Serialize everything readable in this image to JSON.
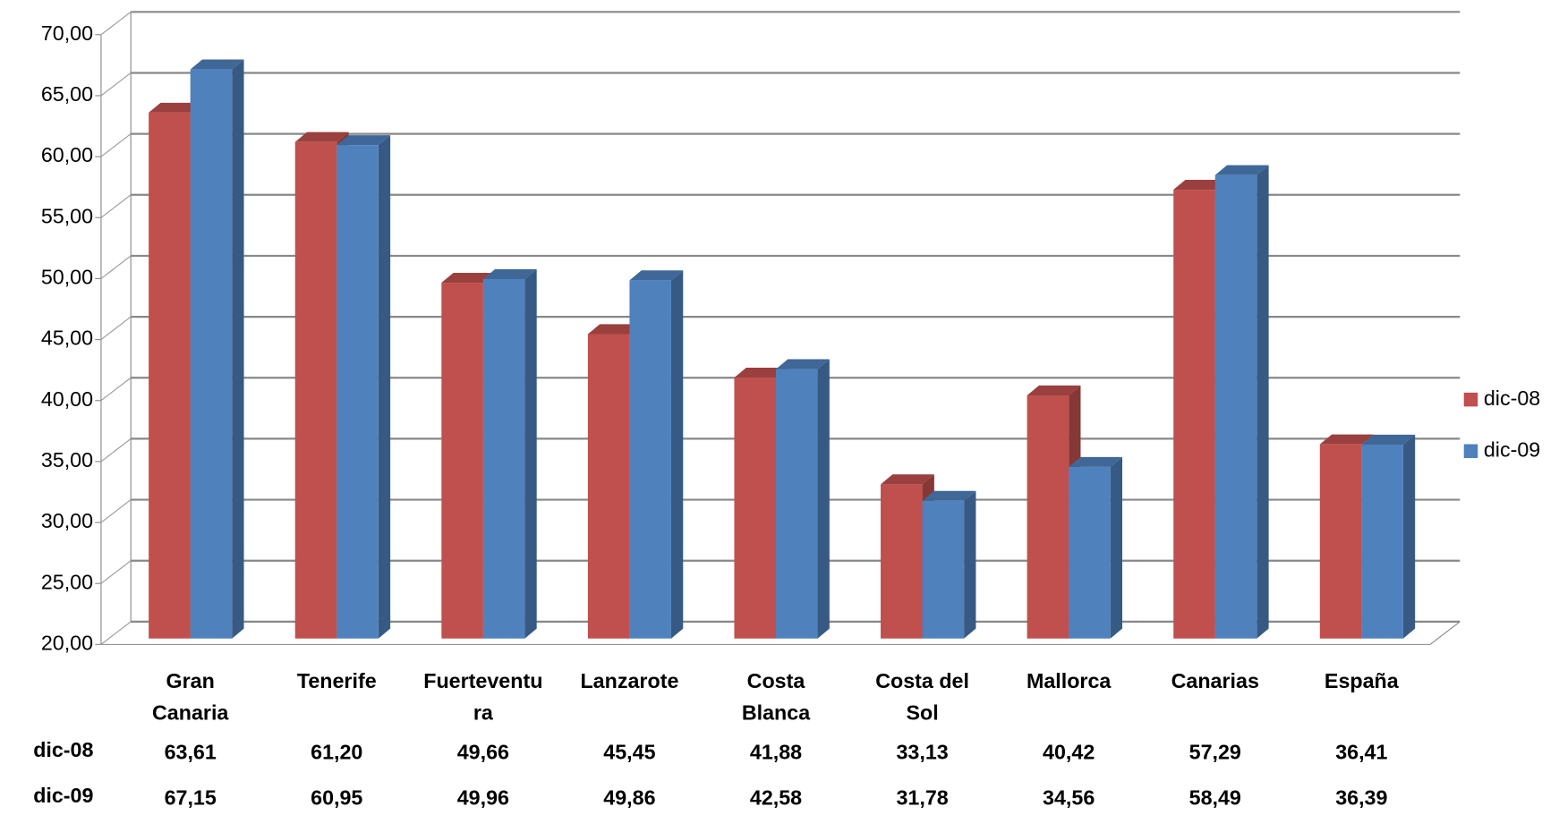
{
  "chart_data": {
    "type": "bar3d",
    "categories": [
      "Gran Canaria",
      "Tenerife",
      "Fuerteventura",
      "Lanzarote",
      "Costa Blanca",
      "Costa del Sol",
      "Mallorca",
      "Canarias",
      "España"
    ],
    "series": [
      {
        "name": "dic-08",
        "color": "#c0504d",
        "values": [
          63.61,
          61.2,
          49.66,
          45.45,
          41.88,
          33.13,
          40.42,
          57.29,
          36.41
        ],
        "value_labels": [
          "63,61",
          "61,20",
          "49,66",
          "45,45",
          "41,88",
          "33,13",
          "40,42",
          "57,29",
          "36,41"
        ]
      },
      {
        "name": "dic-09",
        "color": "#4f81bd",
        "values": [
          67.15,
          60.95,
          49.96,
          49.86,
          42.58,
          31.78,
          34.56,
          58.49,
          36.39
        ],
        "value_labels": [
          "67,15",
          "60,95",
          "49,96",
          "49,86",
          "42,58",
          "31,78",
          "34,56",
          "58,49",
          "36,39"
        ]
      }
    ],
    "ylim": [
      20,
      70
    ],
    "yticks": [
      {
        "value": 20,
        "label": "20,00"
      },
      {
        "value": 25,
        "label": "25,00"
      },
      {
        "value": 30,
        "label": "30,00"
      },
      {
        "value": 35,
        "label": "35,00"
      },
      {
        "value": 40,
        "label": "40,00"
      },
      {
        "value": 45,
        "label": "45,00"
      },
      {
        "value": 50,
        "label": "50,00"
      },
      {
        "value": 55,
        "label": "55,00"
      },
      {
        "value": 60,
        "label": "60,00"
      },
      {
        "value": 65,
        "label": "65,00"
      },
      {
        "value": 70,
        "label": "70,00"
      }
    ],
    "grid": true,
    "legend": "right",
    "data_table": true
  }
}
